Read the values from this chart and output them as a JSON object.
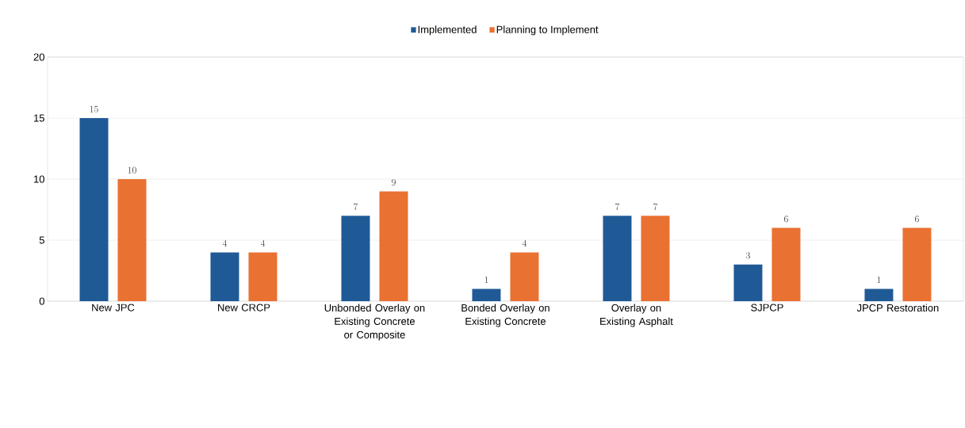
{
  "chart_data": {
    "type": "bar",
    "categories": [
      "New JPC",
      "New CRCP",
      "Unbonded Overlay on Existing Concrete or Composite",
      "Bonded Overlay on Existing Concrete",
      "Overlay on Existing Asphalt",
      "SJPCP",
      "JPCP Restoration"
    ],
    "series": [
      {
        "name": "Implemented",
        "color": "#1f5a96",
        "values": [
          15,
          4,
          7,
          1,
          7,
          3,
          1
        ]
      },
      {
        "name": "Planning to Implement",
        "color": "#e97132",
        "values": [
          10,
          4,
          9,
          4,
          7,
          6,
          6
        ]
      }
    ],
    "ylim": [
      0,
      20
    ],
    "yticks": [
      0,
      5,
      10,
      15,
      20
    ],
    "grid": "y",
    "legend": "top",
    "data_labels": true
  }
}
